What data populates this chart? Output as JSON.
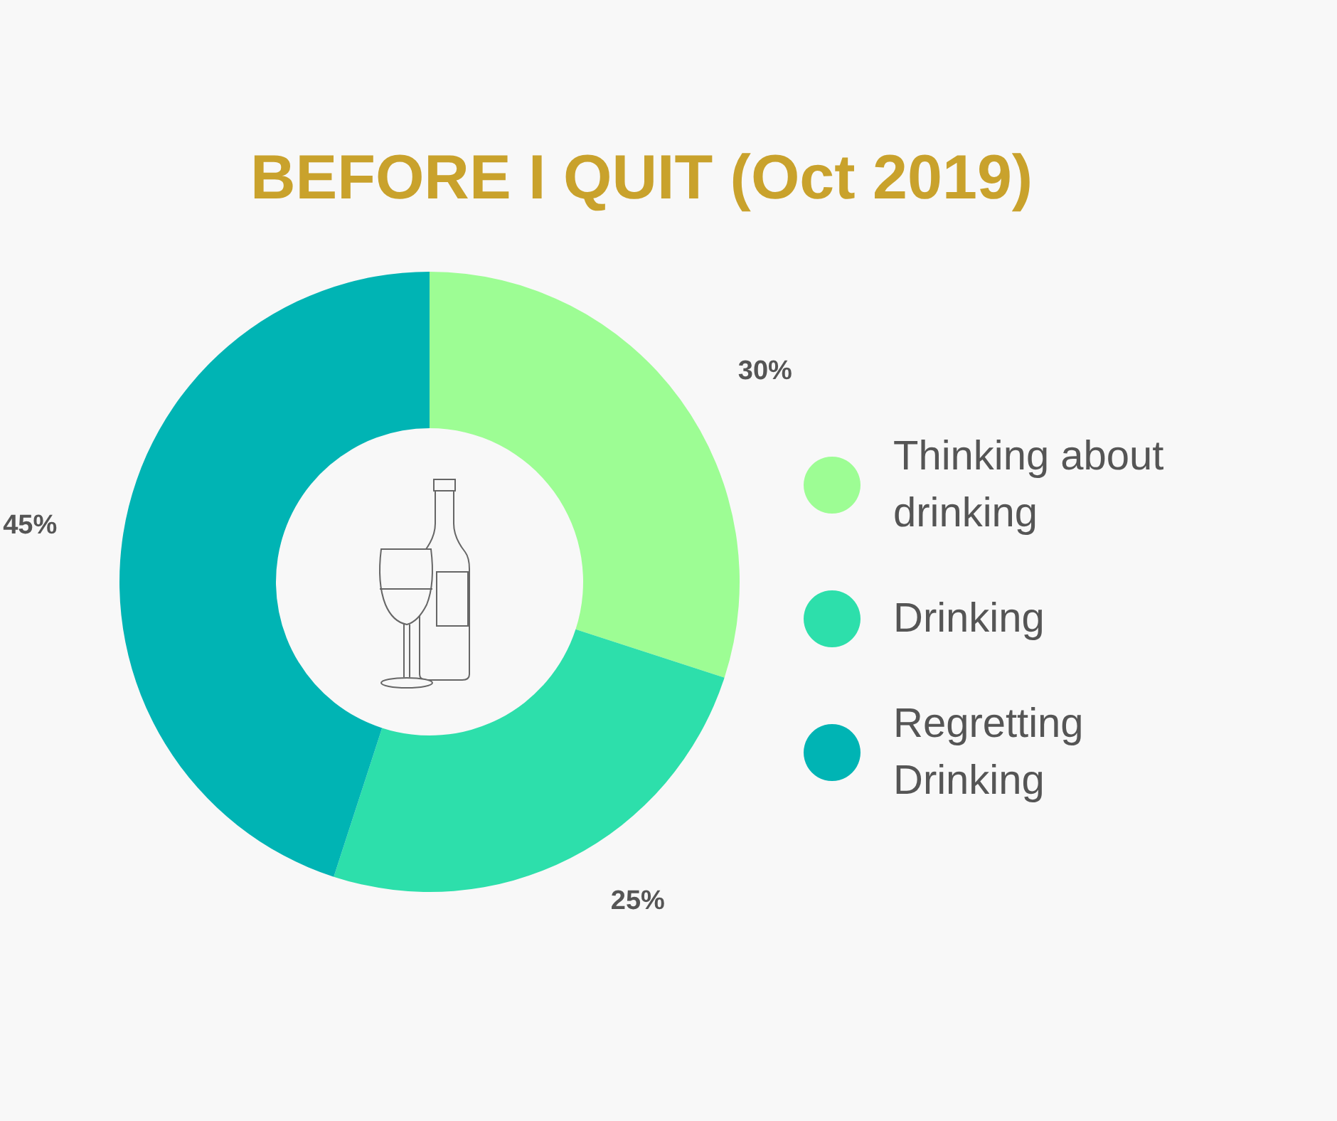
{
  "chart_data": {
    "type": "donut",
    "title": "BEFORE I QUIT (Oct 2019)",
    "categories": [
      "Thinking about drinking",
      "Drinking",
      "Regretting Drinking"
    ],
    "values": [
      30,
      25,
      45
    ],
    "colors": [
      "#9dfd94",
      "#2ddfab",
      "#00b4b4"
    ],
    "value_labels": [
      "30%",
      "25%",
      "45%"
    ],
    "legend": "right"
  }
}
